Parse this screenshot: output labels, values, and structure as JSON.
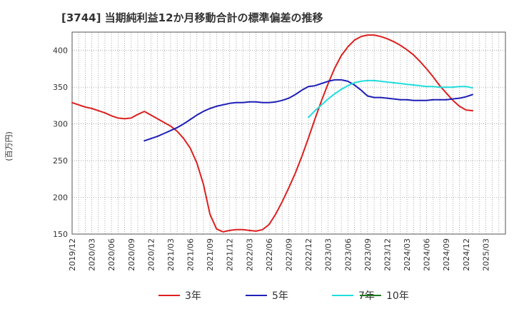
{
  "chart_data": {
    "type": "line",
    "title": "[3744]  当期純利益12か月移動合計の標準偏差の推移",
    "ylabel": "(百万円)",
    "xlabel": "",
    "ylim": [
      150,
      425
    ],
    "yticks": [
      150,
      200,
      250,
      300,
      350,
      400
    ],
    "xlim": [
      0,
      66
    ],
    "xtick_labels": [
      "2019/12",
      "2020/03",
      "2020/06",
      "2020/09",
      "2020/12",
      "2021/03",
      "2021/06",
      "2021/09",
      "2021/12",
      "2022/03",
      "2022/06",
      "2022/09",
      "2022/12",
      "2023/03",
      "2023/06",
      "2023/09",
      "2023/12",
      "2024/03",
      "2024/06",
      "2024/09",
      "2024/12",
      "2025/03"
    ],
    "grid": true,
    "legend_position": "bottom",
    "series": [
      {
        "name": "3年",
        "color": "#dd1f1f",
        "x": [
          0,
          1,
          2,
          3,
          4,
          5,
          6,
          7,
          8,
          9,
          10,
          11,
          12,
          13,
          14,
          15,
          16,
          17,
          18,
          19,
          20,
          21,
          22,
          23,
          24,
          25,
          26,
          27,
          28,
          29,
          30,
          31,
          32,
          33,
          34,
          35,
          36,
          37,
          38,
          39,
          40,
          41,
          42,
          43,
          44,
          45,
          46,
          47,
          48,
          49,
          50,
          51,
          52,
          53,
          54,
          55,
          56,
          57,
          58,
          59,
          60,
          61
        ],
        "values": [
          329,
          326,
          323,
          321,
          318,
          315,
          311,
          308,
          307,
          308,
          313,
          317,
          312,
          307,
          302,
          297,
          290,
          280,
          267,
          247,
          218,
          177,
          157,
          153,
          155,
          156,
          156,
          155,
          154,
          156,
          163,
          177,
          194,
          213,
          233,
          256,
          281,
          307,
          332,
          355,
          376,
          393,
          405,
          414,
          419,
          421,
          421,
          419,
          416,
          412,
          407,
          401,
          394,
          385,
          375,
          364,
          352,
          342,
          332,
          324,
          319,
          318
        ]
      },
      {
        "name": "5年",
        "color": "#1f1fb8",
        "x": [
          11,
          12,
          13,
          14,
          15,
          16,
          17,
          18,
          19,
          20,
          21,
          22,
          23,
          24,
          25,
          26,
          27,
          28,
          29,
          30,
          31,
          32,
          33,
          34,
          35,
          36,
          37,
          38,
          39,
          40,
          41,
          42,
          43,
          44,
          45,
          46,
          47,
          48,
          49,
          50,
          51,
          52,
          53,
          54,
          55,
          56,
          57,
          58,
          59,
          60,
          61
        ],
        "values": [
          277,
          280,
          283,
          287,
          291,
          295,
          300,
          306,
          312,
          317,
          321,
          324,
          326,
          328,
          329,
          329,
          330,
          330,
          329,
          329,
          330,
          332,
          335,
          340,
          346,
          351,
          352,
          355,
          358,
          360,
          360,
          358,
          353,
          346,
          338,
          336,
          336,
          335,
          334,
          333,
          333,
          332,
          332,
          332,
          333,
          333,
          333,
          334,
          335,
          337,
          340
        ]
      },
      {
        "name": "7年",
        "color": "#22dcdc",
        "x": [
          36,
          37,
          38,
          39,
          40,
          41,
          42,
          43,
          44,
          45,
          46,
          47,
          48,
          49,
          50,
          51,
          52,
          53,
          54,
          55,
          56,
          57,
          58,
          59,
          60,
          61
        ],
        "values": [
          309,
          318,
          326,
          334,
          341,
          347,
          352,
          356,
          358,
          359,
          359,
          358,
          357,
          356,
          355,
          354,
          353,
          352,
          351,
          351,
          350,
          350,
          350,
          351,
          351,
          349
        ]
      },
      {
        "name": "10年",
        "color": "#1f7a1f",
        "x": [],
        "values": []
      }
    ]
  }
}
